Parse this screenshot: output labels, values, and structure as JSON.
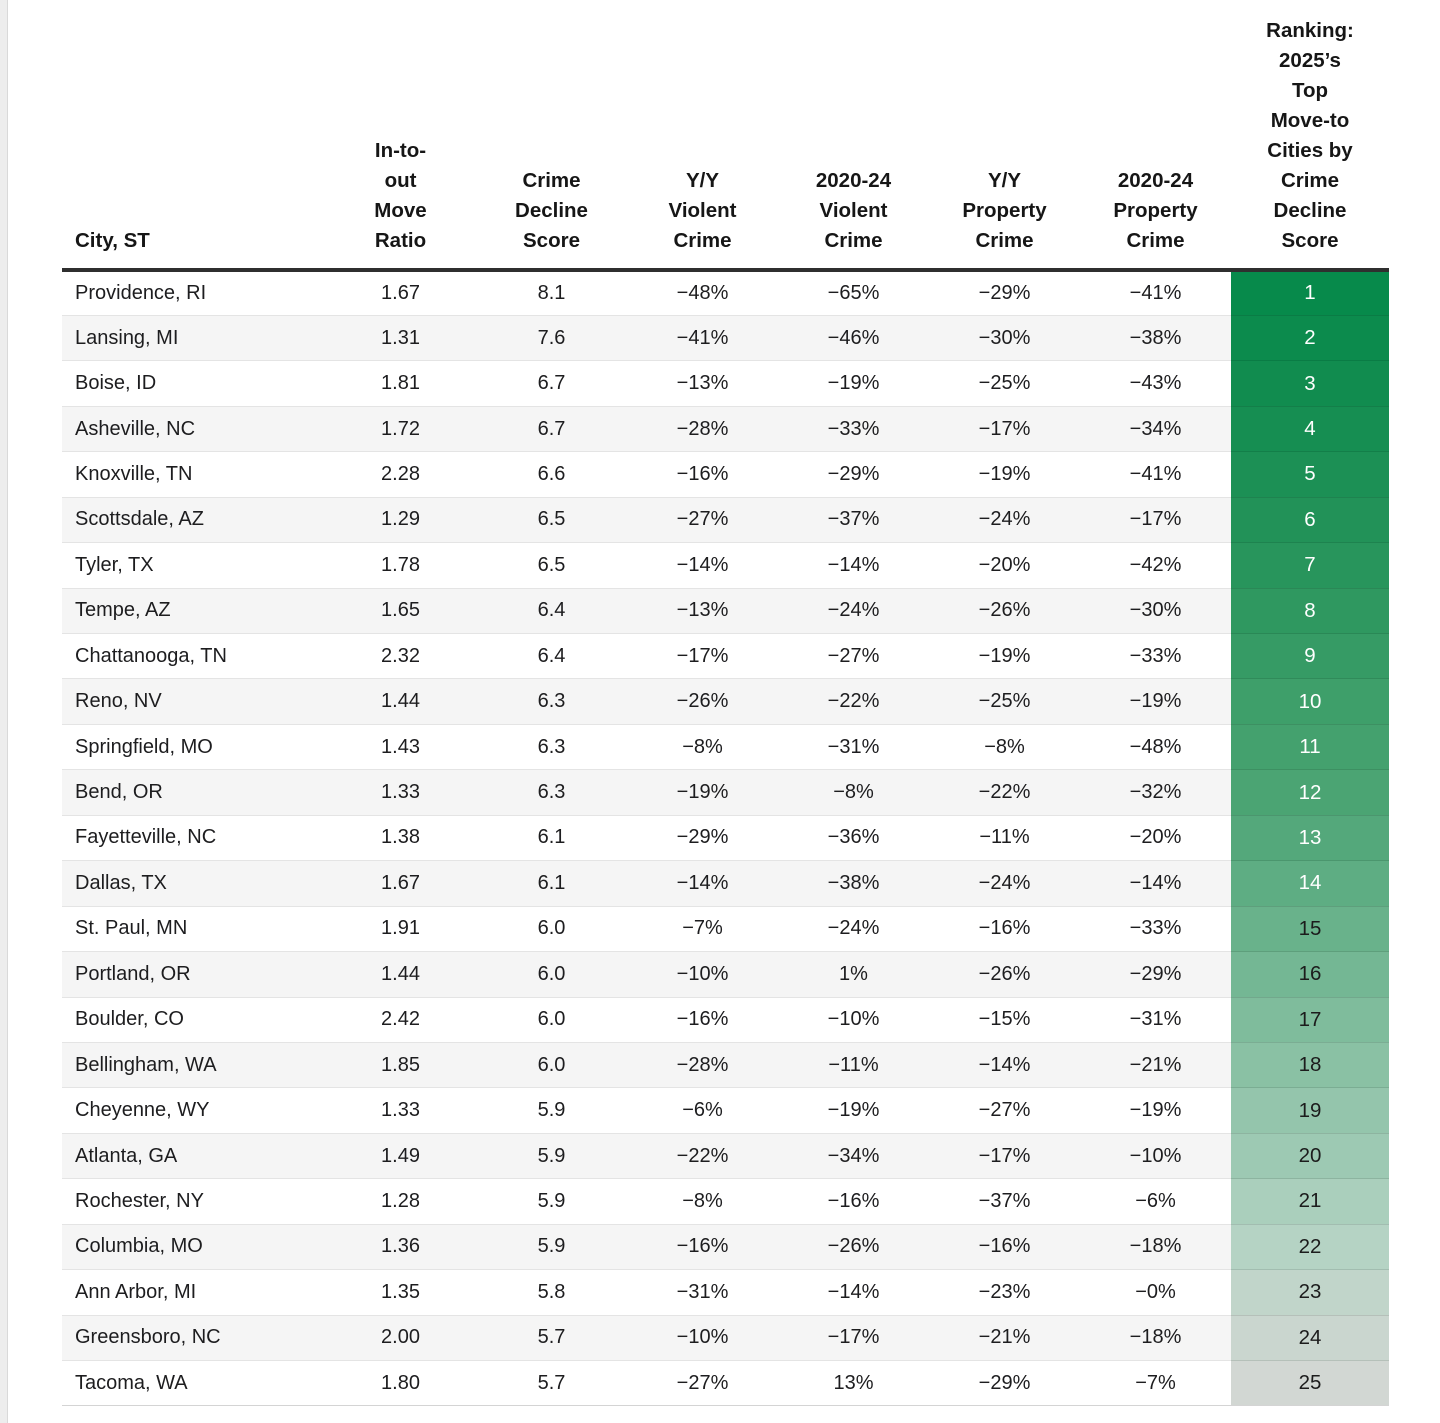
{
  "chart_data": {
    "type": "table",
    "title": "",
    "columns": [
      "City, ST",
      "In-to-\nout\nMove\nRatio",
      "Crime\nDecline\nScore",
      "Y/Y\nViolent\nCrime",
      "2020-24\nViolent\nCrime",
      "Y/Y\nProperty\nCrime",
      "2020-24\nProperty\nCrime",
      "Ranking:\n2025’s\nTop\nMove-to\nCities by\nCrime\nDecline\nScore"
    ],
    "rows": [
      {
        "city": "Providence, RI",
        "move_ratio": "1.67",
        "crime_decline_score": "8.1",
        "yy_violent": "−48%",
        "violent_2020_24": "−65%",
        "yy_property": "−29%",
        "property_2020_24": "−41%",
        "rank": "1",
        "rank_bg": "#078a4b",
        "rank_fg": "#ffffff"
      },
      {
        "city": "Lansing, MI",
        "move_ratio": "1.31",
        "crime_decline_score": "7.6",
        "yy_violent": "−41%",
        "violent_2020_24": "−46%",
        "yy_property": "−30%",
        "property_2020_24": "−38%",
        "rank": "2",
        "rank_bg": "#0c8b4d",
        "rank_fg": "#ffffff"
      },
      {
        "city": "Boise, ID",
        "move_ratio": "1.81",
        "crime_decline_score": "6.7",
        "yy_violent": "−13%",
        "violent_2020_24": "−19%",
        "yy_property": "−25%",
        "property_2020_24": "−43%",
        "rank": "3",
        "rank_bg": "#118c4f",
        "rank_fg": "#ffffff"
      },
      {
        "city": "Asheville, NC",
        "move_ratio": "1.72",
        "crime_decline_score": "6.7",
        "yy_violent": "−28%",
        "violent_2020_24": "−33%",
        "yy_property": "−17%",
        "property_2020_24": "−34%",
        "rank": "4",
        "rank_bg": "#168e52",
        "rank_fg": "#ffffff"
      },
      {
        "city": "Knoxville, TN",
        "move_ratio": "2.28",
        "crime_decline_score": "6.6",
        "yy_violent": "−16%",
        "violent_2020_24": "−29%",
        "yy_property": "−19%",
        "property_2020_24": "−41%",
        "rank": "5",
        "rank_bg": "#1c9055",
        "rank_fg": "#ffffff"
      },
      {
        "city": "Scottsdale, AZ",
        "move_ratio": "1.29",
        "crime_decline_score": "6.5",
        "yy_violent": "−27%",
        "violent_2020_24": "−37%",
        "yy_property": "−24%",
        "property_2020_24": "−17%",
        "rank": "6",
        "rank_bg": "#229258",
        "rank_fg": "#ffffff"
      },
      {
        "city": "Tyler, TX",
        "move_ratio": "1.78",
        "crime_decline_score": "6.5",
        "yy_violent": "−14%",
        "violent_2020_24": "−14%",
        "yy_property": "−20%",
        "property_2020_24": "−42%",
        "rank": "7",
        "rank_bg": "#28955c",
        "rank_fg": "#ffffff"
      },
      {
        "city": "Tempe, AZ",
        "move_ratio": "1.65",
        "crime_decline_score": "6.4",
        "yy_violent": "−13%",
        "violent_2020_24": "−24%",
        "yy_property": "−26%",
        "property_2020_24": "−30%",
        "rank": "8",
        "rank_bg": "#2f9860",
        "rank_fg": "#ffffff"
      },
      {
        "city": "Chattanooga, TN",
        "move_ratio": "2.32",
        "crime_decline_score": "6.4",
        "yy_violent": "−17%",
        "violent_2020_24": "−27%",
        "yy_property": "−19%",
        "property_2020_24": "−33%",
        "rank": "9",
        "rank_bg": "#369b65",
        "rank_fg": "#ffffff"
      },
      {
        "city": "Reno, NV",
        "move_ratio": "1.44",
        "crime_decline_score": "6.3",
        "yy_violent": "−26%",
        "violent_2020_24": "−22%",
        "yy_property": "−25%",
        "property_2020_24": "−19%",
        "rank": "10",
        "rank_bg": "#3e9f6a",
        "rank_fg": "#ffffff"
      },
      {
        "city": "Springfield, MO",
        "move_ratio": "1.43",
        "crime_decline_score": "6.3",
        "yy_violent": "−8%",
        "violent_2020_24": "−31%",
        "yy_property": "−8%",
        "property_2020_24": "−48%",
        "rank": "11",
        "rank_bg": "#44a16e",
        "rank_fg": "#ffffff"
      },
      {
        "city": "Bend, OR",
        "move_ratio": "1.33",
        "crime_decline_score": "6.3",
        "yy_violent": "−19%",
        "violent_2020_24": "−8%",
        "yy_property": "−22%",
        "property_2020_24": "−32%",
        "rank": "12",
        "rank_bg": "#4ba473",
        "rank_fg": "#ffffff"
      },
      {
        "city": "Fayetteville, NC",
        "move_ratio": "1.38",
        "crime_decline_score": "6.1",
        "yy_violent": "−29%",
        "violent_2020_24": "−36%",
        "yy_property": "−11%",
        "property_2020_24": "−20%",
        "rank": "13",
        "rank_bg": "#54a87b",
        "rank_fg": "#ffffff"
      },
      {
        "city": "Dallas, TX",
        "move_ratio": "1.67",
        "crime_decline_score": "6.1",
        "yy_violent": "−14%",
        "violent_2020_24": "−38%",
        "yy_property": "−24%",
        "property_2020_24": "−14%",
        "rank": "14",
        "rank_bg": "#5ead83",
        "rank_fg": "#ffffff"
      },
      {
        "city": "St. Paul, MN",
        "move_ratio": "1.91",
        "crime_decline_score": "6.0",
        "yy_violent": "−7%",
        "violent_2020_24": "−24%",
        "yy_property": "−16%",
        "property_2020_24": "−33%",
        "rank": "15",
        "rank_bg": "#69b28b",
        "rank_fg": "#1c1c1c"
      },
      {
        "city": "Portland, OR",
        "move_ratio": "1.44",
        "crime_decline_score": "6.0",
        "yy_violent": "−10%",
        "violent_2020_24": "1%",
        "yy_property": "−26%",
        "property_2020_24": "−29%",
        "rank": "16",
        "rank_bg": "#74b794",
        "rank_fg": "#1c1c1c"
      },
      {
        "city": "Boulder, CO",
        "move_ratio": "2.42",
        "crime_decline_score": "6.0",
        "yy_violent": "−16%",
        "violent_2020_24": "−10%",
        "yy_property": "−15%",
        "property_2020_24": "−31%",
        "rank": "17",
        "rank_bg": "#7fbc9c",
        "rank_fg": "#1c1c1c"
      },
      {
        "city": "Bellingham, WA",
        "move_ratio": "1.85",
        "crime_decline_score": "6.0",
        "yy_violent": "−28%",
        "violent_2020_24": "−11%",
        "yy_property": "−14%",
        "property_2020_24": "−21%",
        "rank": "18",
        "rank_bg": "#8ac1a4",
        "rank_fg": "#1c1c1c"
      },
      {
        "city": "Cheyenne, WY",
        "move_ratio": "1.33",
        "crime_decline_score": "5.9",
        "yy_violent": "−6%",
        "violent_2020_24": "−19%",
        "yy_property": "−27%",
        "property_2020_24": "−19%",
        "rank": "19",
        "rank_bg": "#94c5ac",
        "rank_fg": "#1c1c1c"
      },
      {
        "city": "Atlanta, GA",
        "move_ratio": "1.49",
        "crime_decline_score": "5.9",
        "yy_violent": "−22%",
        "violent_2020_24": "−34%",
        "yy_property": "−17%",
        "property_2020_24": "−10%",
        "rank": "20",
        "rank_bg": "#9dc9b3",
        "rank_fg": "#1c1c1c"
      },
      {
        "city": "Rochester, NY",
        "move_ratio": "1.28",
        "crime_decline_score": "5.9",
        "yy_violent": "−8%",
        "violent_2020_24": "−16%",
        "yy_property": "−37%",
        "property_2020_24": "−6%",
        "rank": "21",
        "rank_bg": "#aacfbc",
        "rank_fg": "#1c1c1c"
      },
      {
        "city": "Columbia, MO",
        "move_ratio": "1.36",
        "crime_decline_score": "5.9",
        "yy_violent": "−16%",
        "violent_2020_24": "−26%",
        "yy_property": "−16%",
        "property_2020_24": "−18%",
        "rank": "22",
        "rank_bg": "#b5d3c4",
        "rank_fg": "#1c1c1c"
      },
      {
        "city": "Ann Arbor, MI",
        "move_ratio": "1.35",
        "crime_decline_score": "5.8",
        "yy_violent": "−31%",
        "violent_2020_24": "−14%",
        "yy_property": "−23%",
        "property_2020_24": "−0%",
        "rank": "23",
        "rank_bg": "#c1d5ca",
        "rank_fg": "#1c1c1c"
      },
      {
        "city": "Greensboro, NC",
        "move_ratio": "2.00",
        "crime_decline_score": "5.7",
        "yy_violent": "−10%",
        "violent_2020_24": "−17%",
        "yy_property": "−21%",
        "property_2020_24": "−18%",
        "rank": "24",
        "rank_bg": "#cad6cf",
        "rank_fg": "#1c1c1c"
      },
      {
        "city": "Tacoma, WA",
        "move_ratio": "1.80",
        "crime_decline_score": "5.7",
        "yy_violent": "−27%",
        "violent_2020_24": "13%",
        "yy_property": "−29%",
        "property_2020_24": "−7%",
        "rank": "25",
        "rank_bg": "#d2d7d3",
        "rank_fg": "#1c1c1c"
      }
    ],
    "layout_hints": {
      "zebra_striping": true,
      "rank_color_scale": [
        "#078a4b",
        "#d2d7d3"
      ],
      "header_rule_color": "#2f2f2f",
      "stripe_color": "#f5f5f5"
    }
  }
}
